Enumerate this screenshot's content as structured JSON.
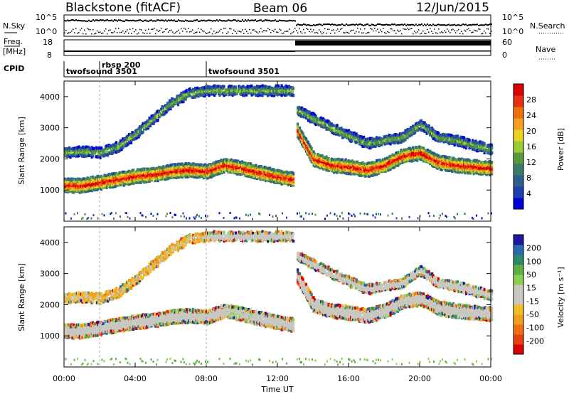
{
  "header": {
    "station": "Blackstone (fitACF)",
    "beam": "Beam 06",
    "date": "12/Jun/2015"
  },
  "status_panels": {
    "nsky": {
      "label": "N.Sky",
      "ticks": [
        "10^5",
        "10^0"
      ]
    },
    "nsearch": {
      "label": "N.Search",
      "ticks": [
        "10^5",
        "10^0"
      ]
    },
    "freq": {
      "label_top": "Freq.",
      "label_bottom": "[MHz]",
      "ticks": [
        "18",
        "8"
      ]
    },
    "nave": {
      "label": "Nave",
      "ticks": [
        "60",
        "0"
      ]
    },
    "cpid": {
      "label": "CPID",
      "entries": [
        {
          "name": "twofsound 3501",
          "start_hour": 0
        },
        {
          "name": "rbsp 200",
          "start_hour": 2
        },
        {
          "name": "twofsound 3501",
          "start_hour": 8
        }
      ]
    }
  },
  "chart_data": [
    {
      "type": "heatmap",
      "title": "",
      "xlabel": "Time UT",
      "ylabel": "Slant Range [km]",
      "x_ticks": [
        "00:00",
        "04:00",
        "08:00",
        "12:00",
        "16:00",
        "20:00",
        "00:00"
      ],
      "y_ticks": [
        "1000",
        "2000",
        "3000",
        "4000"
      ],
      "xlim_hours": [
        0,
        24
      ],
      "ylim_km": [
        0,
        4500
      ],
      "colorbar": {
        "label": "Power [dB]",
        "ticks": [
          "4",
          "8",
          "12",
          "16",
          "20",
          "24",
          "28"
        ],
        "range": [
          0,
          32
        ],
        "colors": [
          "#0000d8",
          "#1e3fb0",
          "#2e5d8c",
          "#3b7a66",
          "#5a9a3e",
          "#9acd32",
          "#f0d020",
          "#f5a020",
          "#f07010",
          "#e83010",
          "#d80000"
        ]
      },
      "bands": [
        {
          "name": "main echo band",
          "points": [
            [
              0,
              1150
            ],
            [
              1,
              1150
            ],
            [
              2,
              1250
            ],
            [
              3,
              1350
            ],
            [
              4,
              1450
            ],
            [
              5,
              1500
            ],
            [
              6,
              1600
            ],
            [
              7,
              1650
            ],
            [
              8,
              1600
            ],
            [
              9,
              1800
            ],
            [
              10,
              1700
            ],
            [
              11,
              1550
            ],
            [
              12.8,
              1350
            ]
          ]
        },
        {
          "name": "upper echo band",
          "points": [
            [
              0,
              2200
            ],
            [
              1,
              2250
            ],
            [
              2,
              2200
            ],
            [
              3,
              2400
            ],
            [
              4,
              2800
            ],
            [
              5,
              3300
            ],
            [
              6,
              3800
            ],
            [
              7,
              4100
            ],
            [
              8,
              4200
            ]
          ]
        },
        {
          "name": "post-13h main band",
          "points": [
            [
              13,
              3000
            ],
            [
              14,
              2000
            ],
            [
              15,
              1800
            ],
            [
              16,
              1750
            ],
            [
              17,
              1650
            ],
            [
              18,
              1800
            ],
            [
              19,
              2100
            ],
            [
              20,
              2200
            ],
            [
              21,
              1900
            ],
            [
              22,
              1800
            ],
            [
              23,
              1750
            ],
            [
              24,
              1700
            ]
          ]
        },
        {
          "name": "post-13h upper band",
          "points": [
            [
              13,
              3600
            ],
            [
              15,
              3000
            ],
            [
              17,
              2500
            ],
            [
              19,
              2700
            ],
            [
              20,
              3100
            ],
            [
              21,
              2700
            ],
            [
              22,
              2600
            ],
            [
              24,
              2300
            ]
          ]
        }
      ]
    },
    {
      "type": "heatmap",
      "title": "",
      "xlabel": "Time UT",
      "ylabel": "Slant Range [km]",
      "x_ticks": [
        "00:00",
        "04:00",
        "08:00",
        "12:00",
        "16:00",
        "20:00",
        "00:00"
      ],
      "y_ticks": [
        "1000",
        "2000",
        "3000",
        "4000"
      ],
      "xlim_hours": [
        0,
        24
      ],
      "ylim_km": [
        0,
        4500
      ],
      "colorbar": {
        "label": "Velocity [m s⁻¹]",
        "ticks": [
          "200",
          "100",
          "50",
          "15",
          "-15",
          "-50",
          "-100",
          "-200"
        ],
        "range": [
          -250,
          250
        ],
        "colors": [
          "#1a1aa0",
          "#2a6ab0",
          "#2a8a6a",
          "#5ab040",
          "#8ad050",
          "#c8c8c0",
          "#c8c8c0",
          "#f0c020",
          "#f0a020",
          "#f07010",
          "#e84010",
          "#d80000"
        ]
      }
    }
  ]
}
